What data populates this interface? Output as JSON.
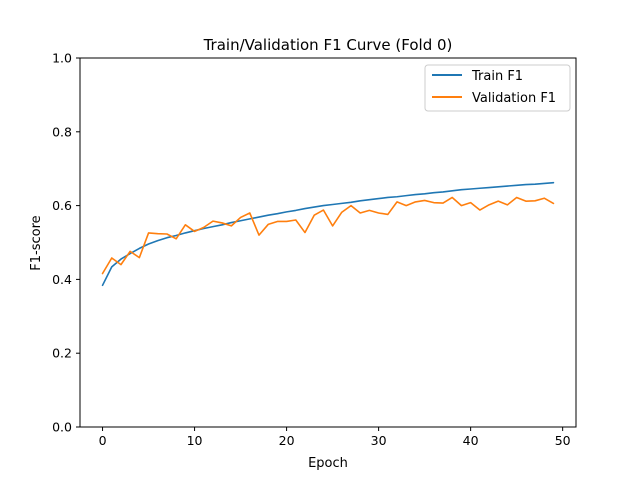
{
  "chart_data": {
    "type": "line",
    "title": "Train/Validation F1 Curve (Fold 0)",
    "xlabel": "Epoch",
    "ylabel": "F1-score",
    "xlim": [
      -2.45,
      51.45
    ],
    "ylim": [
      0.0,
      1.0
    ],
    "xticks": [
      0,
      10,
      20,
      30,
      40,
      50
    ],
    "yticks": [
      0.0,
      0.2,
      0.4,
      0.6,
      0.8,
      1.0
    ],
    "grid": false,
    "legend_position": "top-right",
    "x": [
      0,
      1,
      2,
      3,
      4,
      5,
      6,
      7,
      8,
      9,
      10,
      11,
      12,
      13,
      14,
      15,
      16,
      17,
      18,
      19,
      20,
      21,
      22,
      23,
      24,
      25,
      26,
      27,
      28,
      29,
      30,
      31,
      32,
      33,
      34,
      35,
      36,
      37,
      38,
      39,
      40,
      41,
      42,
      43,
      44,
      45,
      46,
      47,
      48,
      49
    ],
    "series": [
      {
        "name": "Train F1",
        "color": "#1f77b4",
        "values": [
          0.384,
          0.434,
          0.455,
          0.47,
          0.484,
          0.496,
          0.505,
          0.513,
          0.519,
          0.526,
          0.532,
          0.538,
          0.543,
          0.548,
          0.554,
          0.559,
          0.564,
          0.569,
          0.574,
          0.578,
          0.583,
          0.587,
          0.592,
          0.596,
          0.6,
          0.603,
          0.606,
          0.609,
          0.613,
          0.616,
          0.619,
          0.622,
          0.624,
          0.627,
          0.63,
          0.632,
          0.635,
          0.637,
          0.64,
          0.643,
          0.645,
          0.647,
          0.649,
          0.651,
          0.653,
          0.655,
          0.657,
          0.658,
          0.66,
          0.662
        ]
      },
      {
        "name": "Validation F1",
        "color": "#ff7f0e",
        "values": [
          0.416,
          0.458,
          0.44,
          0.476,
          0.459,
          0.526,
          0.524,
          0.523,
          0.51,
          0.548,
          0.53,
          0.541,
          0.558,
          0.553,
          0.545,
          0.568,
          0.58,
          0.52,
          0.549,
          0.557,
          0.557,
          0.561,
          0.527,
          0.574,
          0.588,
          0.545,
          0.582,
          0.6,
          0.58,
          0.587,
          0.58,
          0.576,
          0.61,
          0.6,
          0.61,
          0.614,
          0.608,
          0.607,
          0.622,
          0.6,
          0.608,
          0.588,
          0.602,
          0.612,
          0.602,
          0.622,
          0.612,
          0.613,
          0.62,
          0.606
        ]
      }
    ]
  }
}
